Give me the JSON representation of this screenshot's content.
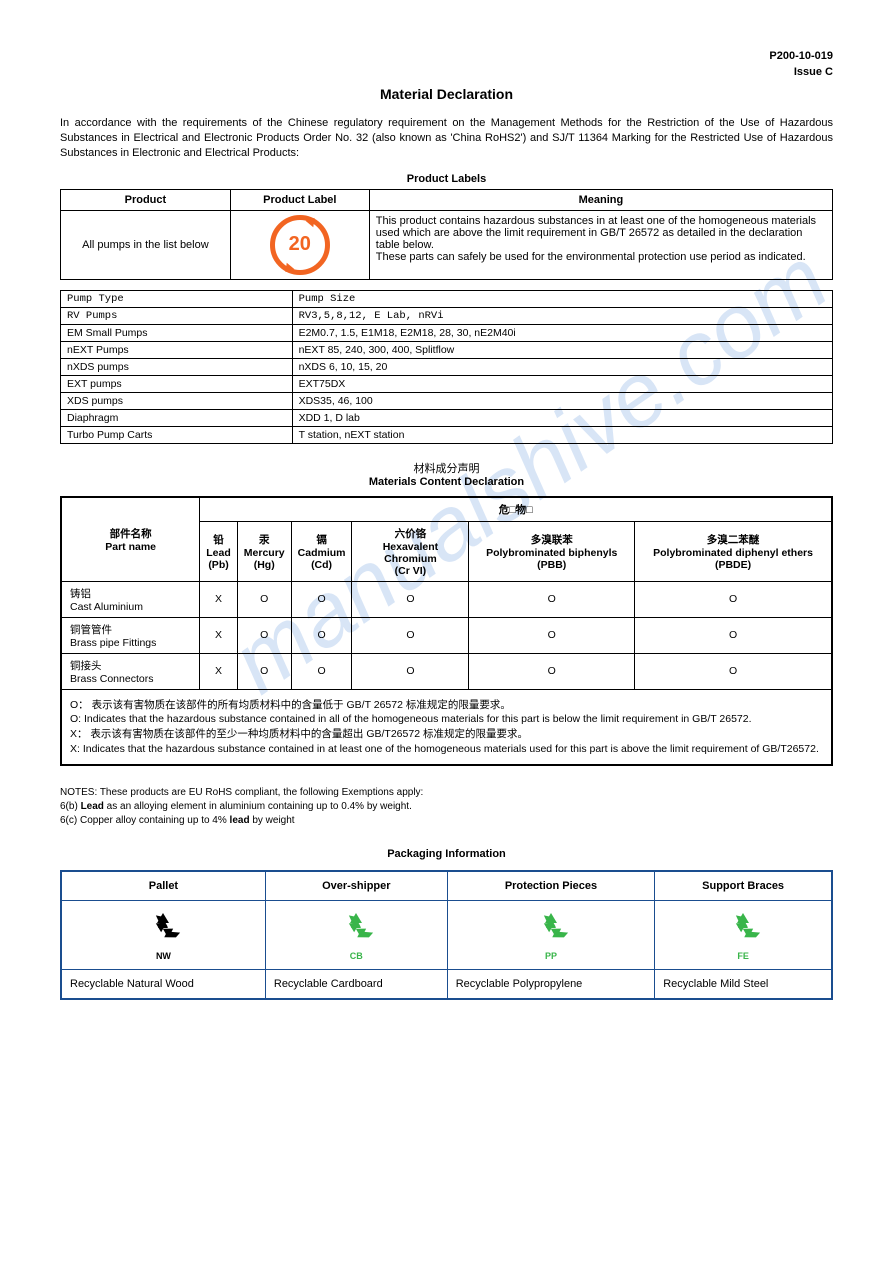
{
  "header": {
    "doc_no": "P200-10-019",
    "issue": "Issue C"
  },
  "title": "Material Declaration",
  "intro": "In accordance with the requirements of the Chinese regulatory requirement on the Management Methods for the Restriction of the Use of Hazardous Substances in Electrical and Electronic Products Order No. 32 (also known as 'China RoHS2') and SJ/T 11364 Marking for the Restricted Use of Hazardous Substances in Electronic and Electrical Products:",
  "labels_section": {
    "title": "Product Labels",
    "headers": [
      "Product",
      "Product Label",
      "Meaning"
    ],
    "product": "All pumps in the list below",
    "label_number": "20",
    "label_color": "#f26522",
    "meaning": "This product contains hazardous substances in at least one of the homogeneous materials used which are above the limit requirement in GB/T 26572 as detailed in the declaration table below.\nThese parts can safely be used for the environmental protection use period as indicated."
  },
  "pumps": {
    "headers": [
      "Pump Type",
      "Pump Size"
    ],
    "rows": [
      [
        "RV Pumps",
        "RV3,5,8,12, E Lab, nRVi"
      ],
      [
        "EM Small Pumps",
        "E2M0.7, 1.5, E1M18, E2M18, 28, 30, nE2M40i"
      ],
      [
        "nEXT Pumps",
        "nEXT 85, 240, 300, 400, Splitflow"
      ],
      [
        "nXDS pumps",
        "nXDS 6, 10, 15, 20"
      ],
      [
        "EXT pumps",
        "EXT75DX"
      ],
      [
        "XDS pumps",
        "XDS35, 46, 100"
      ],
      [
        "Diaphragm",
        "XDD 1, D lab"
      ],
      [
        "Turbo Pump Carts",
        "T station, nEXT station"
      ]
    ]
  },
  "materials": {
    "title_cn": "材料成分声明",
    "title_en": "Materials Content Declaration",
    "hazmat_header": "危□物□",
    "partname_header_cn": "部件名称",
    "partname_header_en": "Part name",
    "columns": [
      {
        "cn": "铅",
        "en": "Lead",
        "sym": "(Pb)"
      },
      {
        "cn": "汞",
        "en": "Mercury",
        "sym": "(Hg)"
      },
      {
        "cn": "镉",
        "en": "Cadmium",
        "sym": "(Cd)"
      },
      {
        "cn": "六价铬",
        "en": "Hexavalent Chromium",
        "sym": "(Cr VI)"
      },
      {
        "cn": "多溴联苯",
        "en": "Polybrominated biphenyls (PBB)",
        "sym": ""
      },
      {
        "cn": "多溴二苯醚",
        "en": "Polybrominated diphenyl ethers (PBDE)",
        "sym": ""
      }
    ],
    "rows": [
      {
        "cn": "铸铝",
        "en": "Cast Aluminium",
        "vals": [
          "X",
          "O",
          "O",
          "O",
          "O",
          "O"
        ]
      },
      {
        "cn": "铜管管件",
        "en": "Brass pipe Fittings",
        "vals": [
          "X",
          "O",
          "O",
          "O",
          "O",
          "O"
        ]
      },
      {
        "cn": "铜接头",
        "en": "Brass Connectors",
        "vals": [
          "X",
          "O",
          "O",
          "O",
          "O",
          "O"
        ]
      }
    ],
    "legend": "O： 表示该有害物质在该部件的所有均质材料中的含量低于 GB/T 26572 标准规定的限量要求。\nO: Indicates that the hazardous substance contained in all of the homogeneous materials for this part is below the limit requirement in GB/T 26572.\nX： 表示该有害物质在该部件的至少一种均质材料中的含量超出 GB/T26572 标准规定的限量要求。\nX: Indicates that the hazardous substance contained in at least one of the homogeneous materials used for this part is above the limit requirement of GB/T26572."
  },
  "notes": {
    "l1": "NOTES: These products are EU RoHS compliant, the following Exemptions apply:",
    "l2": "6(b) Lead as an alloying element in aluminium containing up to 0.4% by weight.",
    "l3": "6(c) Copper alloy containing up to 4% lead by weight"
  },
  "packaging": {
    "title": "Packaging Information",
    "cols": [
      {
        "h": "Pallet",
        "code": "NW",
        "color": "#000000",
        "desc": "Recyclable Natural Wood"
      },
      {
        "h": "Over-shipper",
        "code": "CB",
        "color": "#39b54a",
        "desc": "Recyclable Cardboard"
      },
      {
        "h": "Protection Pieces",
        "code": "PP",
        "color": "#39b54a",
        "desc": "Recyclable Polypropylene",
        "num": "5"
      },
      {
        "h": "Support Braces",
        "code": "FE",
        "color": "#39b54a",
        "desc": "Recyclable Mild Steel"
      }
    ]
  },
  "watermark": "manualshive.com"
}
